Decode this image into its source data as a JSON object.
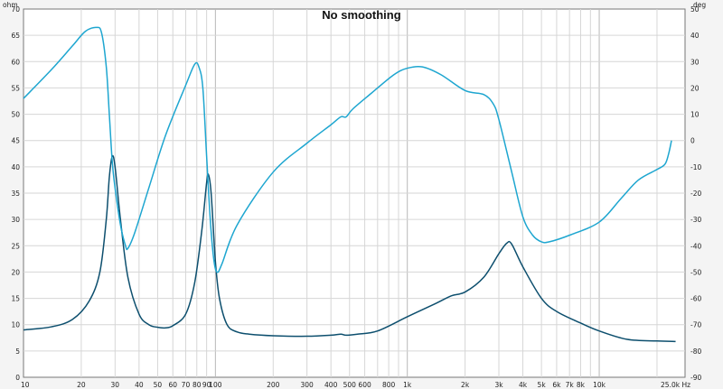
{
  "chart_data": {
    "type": "line",
    "title": "No smoothing",
    "x_scale": "log",
    "xlim": [
      10,
      28000
    ],
    "y_left_label": "ohm",
    "y_right_label": "deg",
    "y_left_lim": [
      0,
      70
    ],
    "y_right_lim": [
      -90,
      50
    ],
    "x_ticks": [
      {
        "v": 10,
        "label": "10"
      },
      {
        "v": 20,
        "label": "20"
      },
      {
        "v": 30,
        "label": "30"
      },
      {
        "v": 40,
        "label": "40"
      },
      {
        "v": 50,
        "label": "50"
      },
      {
        "v": 60,
        "label": "60"
      },
      {
        "v": 70,
        "label": "70"
      },
      {
        "v": 80,
        "label": "80"
      },
      {
        "v": 90,
        "label": "90"
      },
      {
        "v": 100,
        "label": "100"
      },
      {
        "v": 200,
        "label": "200"
      },
      {
        "v": 300,
        "label": "300"
      },
      {
        "v": 400,
        "label": "400"
      },
      {
        "v": 500,
        "label": "500"
      },
      {
        "v": 600,
        "label": "600"
      },
      {
        "v": 800,
        "label": "800"
      },
      {
        "v": 1000,
        "label": "1k"
      },
      {
        "v": 2000,
        "label": "2k"
      },
      {
        "v": 3000,
        "label": "3k"
      },
      {
        "v": 4000,
        "label": "4k"
      },
      {
        "v": 5000,
        "label": "5k"
      },
      {
        "v": 6000,
        "label": "6k"
      },
      {
        "v": 7000,
        "label": "7k"
      },
      {
        "v": 8000,
        "label": "8k"
      },
      {
        "v": 10000,
        "label": "10k"
      },
      {
        "v": 25000,
        "label": "25.0k Hz"
      }
    ],
    "y_left_ticks": [
      0,
      5,
      10,
      15,
      20,
      25,
      30,
      35,
      40,
      45,
      50,
      55,
      60,
      65,
      70
    ],
    "y_right_ticks": [
      -90,
      -80,
      -70,
      -60,
      -50,
      -40,
      -30,
      -20,
      -10,
      0,
      10,
      20,
      30,
      40,
      50
    ],
    "grid": true,
    "series": [
      {
        "axis": "left",
        "color": "#0d4f6e",
        "points": [
          [
            10,
            9.0
          ],
          [
            14,
            9.6
          ],
          [
            18,
            11.0
          ],
          [
            22,
            14.5
          ],
          [
            25,
            20
          ],
          [
            27,
            30
          ],
          [
            28,
            38
          ],
          [
            29,
            42
          ],
          [
            30,
            40
          ],
          [
            32,
            30
          ],
          [
            35,
            19
          ],
          [
            40,
            12
          ],
          [
            45,
            10
          ],
          [
            50,
            9.5
          ],
          [
            55,
            9.4
          ],
          [
            60,
            9.8
          ],
          [
            70,
            12
          ],
          [
            78,
            18
          ],
          [
            85,
            28
          ],
          [
            90,
            37
          ],
          [
            92,
            38.5
          ],
          [
            95,
            35
          ],
          [
            100,
            22
          ],
          [
            105,
            15
          ],
          [
            115,
            10
          ],
          [
            130,
            8.6
          ],
          [
            150,
            8.2
          ],
          [
            200,
            7.9
          ],
          [
            300,
            7.8
          ],
          [
            400,
            8.0
          ],
          [
            450,
            8.2
          ],
          [
            480,
            8.0
          ],
          [
            550,
            8.2
          ],
          [
            700,
            8.8
          ],
          [
            1000,
            11.5
          ],
          [
            1400,
            14
          ],
          [
            1700,
            15.5
          ],
          [
            2000,
            16.2
          ],
          [
            2500,
            19
          ],
          [
            3000,
            23.5
          ],
          [
            3300,
            25.5
          ],
          [
            3500,
            25.3
          ],
          [
            4000,
            21
          ],
          [
            5000,
            15
          ],
          [
            6000,
            12.5
          ],
          [
            8000,
            10.3
          ],
          [
            10000,
            8.8
          ],
          [
            14000,
            7.2
          ],
          [
            20000,
            6.9
          ],
          [
            25000,
            6.8
          ]
        ]
      },
      {
        "axis": "right",
        "color": "#1ea6d0",
        "points": [
          [
            10,
            16
          ],
          [
            14,
            27
          ],
          [
            18,
            36
          ],
          [
            21,
            41.5
          ],
          [
            24,
            43
          ],
          [
            25.5,
            41
          ],
          [
            27,
            28
          ],
          [
            28,
            10
          ],
          [
            29,
            -8
          ],
          [
            30,
            -18
          ],
          [
            32,
            -32
          ],
          [
            34,
            -40
          ],
          [
            35,
            -41
          ],
          [
            38,
            -35
          ],
          [
            45,
            -18
          ],
          [
            55,
            2
          ],
          [
            70,
            21
          ],
          [
            78,
            29
          ],
          [
            82,
            28
          ],
          [
            86,
            20
          ],
          [
            90,
            -6
          ],
          [
            94,
            -30
          ],
          [
            98,
            -45
          ],
          [
            102,
            -50
          ],
          [
            108,
            -47
          ],
          [
            130,
            -32
          ],
          [
            200,
            -12
          ],
          [
            300,
            -1
          ],
          [
            400,
            6
          ],
          [
            450,
            9
          ],
          [
            480,
            9
          ],
          [
            520,
            12
          ],
          [
            650,
            18
          ],
          [
            850,
            25
          ],
          [
            1000,
            27.5
          ],
          [
            1200,
            28
          ],
          [
            1500,
            25
          ],
          [
            2000,
            19
          ],
          [
            2500,
            17.5
          ],
          [
            2800,
            14
          ],
          [
            3000,
            8
          ],
          [
            3500,
            -12
          ],
          [
            4000,
            -29
          ],
          [
            4500,
            -36
          ],
          [
            5000,
            -38.5
          ],
          [
            5500,
            -38.5
          ],
          [
            7000,
            -36
          ],
          [
            10000,
            -31
          ],
          [
            13000,
            -22
          ],
          [
            16000,
            -15
          ],
          [
            20000,
            -11
          ],
          [
            22000,
            -9
          ],
          [
            23000,
            -5
          ],
          [
            23800,
            0
          ]
        ]
      }
    ]
  }
}
